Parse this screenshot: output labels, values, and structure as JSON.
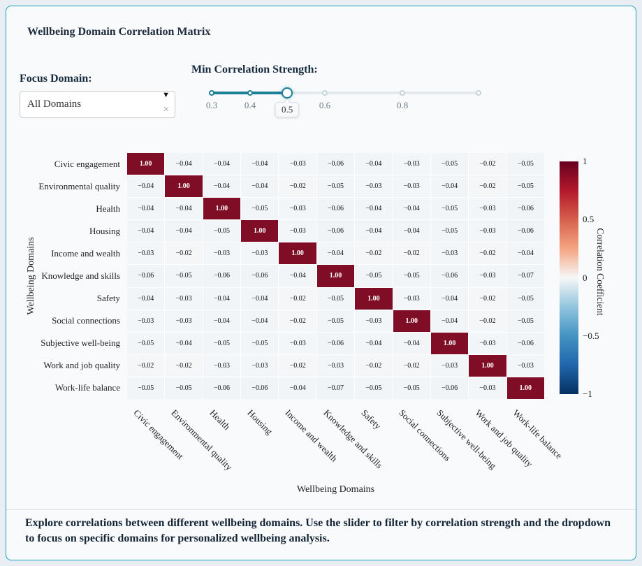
{
  "page": {
    "title": "Wellbeing Domain Correlation Matrix"
  },
  "colors": {
    "card_border_teal": "#17a2b8",
    "slider_accent_teal": "#1b7f96",
    "heatmap_diagonal_red": "#7f0d26",
    "colorbar_top_red": "#67001f",
    "colorbar_bottom_blue": "#053061"
  },
  "controls": {
    "focus_domain_label": "Focus Domain:",
    "dropdown": {
      "selected_value": "All Domains",
      "arrow_icon": "▼",
      "clear_icon": "×"
    },
    "slider_label": "Min Correlation Strength:",
    "slider": {
      "tooltip_value": "0.5",
      "handle_percent": 28.3,
      "marks": [
        {
          "label": "0.3",
          "percent": 0
        },
        {
          "label": "0.4",
          "percent": 14.4
        },
        {
          "label": "0.6",
          "percent": 42.4
        },
        {
          "label": "0.8",
          "percent": 71.5
        }
      ],
      "extra_dots_percent": [
        100
      ]
    }
  },
  "chart_data": {
    "type": "heatmap",
    "title": "",
    "xlabel": "Wellbeing Domains",
    "ylabel": "Wellbeing Domains",
    "categories": [
      "Civic engagement",
      "Environmental quality",
      "Health",
      "Housing",
      "Income and wealth",
      "Knowledge and skills",
      "Safety",
      "Social connections",
      "Subjective well-being",
      "Work and job quality",
      "Work-life balance"
    ],
    "z": [
      [
        1.0,
        -0.04,
        -0.04,
        -0.04,
        -0.03,
        -0.06,
        -0.04,
        -0.03,
        -0.05,
        -0.02,
        -0.05
      ],
      [
        -0.04,
        1.0,
        -0.04,
        -0.04,
        -0.02,
        -0.05,
        -0.03,
        -0.03,
        -0.04,
        -0.02,
        -0.05
      ],
      [
        -0.04,
        -0.04,
        1.0,
        -0.05,
        -0.03,
        -0.06,
        -0.04,
        -0.04,
        -0.05,
        -0.03,
        -0.06
      ],
      [
        -0.04,
        -0.04,
        -0.05,
        1.0,
        -0.03,
        -0.06,
        -0.04,
        -0.04,
        -0.05,
        -0.03,
        -0.06
      ],
      [
        -0.03,
        -0.02,
        -0.03,
        -0.03,
        1.0,
        -0.04,
        -0.02,
        -0.02,
        -0.03,
        -0.02,
        -0.04
      ],
      [
        -0.06,
        -0.05,
        -0.06,
        -0.06,
        -0.04,
        1.0,
        -0.05,
        -0.05,
        -0.06,
        -0.03,
        -0.07
      ],
      [
        -0.04,
        -0.03,
        -0.04,
        -0.04,
        -0.02,
        -0.05,
        1.0,
        -0.03,
        -0.04,
        -0.02,
        -0.05
      ],
      [
        -0.03,
        -0.03,
        -0.04,
        -0.04,
        -0.02,
        -0.05,
        -0.03,
        1.0,
        -0.04,
        -0.02,
        -0.05
      ],
      [
        -0.05,
        -0.04,
        -0.05,
        -0.05,
        -0.03,
        -0.06,
        -0.04,
        -0.04,
        1.0,
        -0.03,
        -0.06
      ],
      [
        -0.02,
        -0.02,
        -0.03,
        -0.03,
        -0.02,
        -0.03,
        -0.02,
        -0.02,
        -0.03,
        1.0,
        -0.03
      ],
      [
        -0.05,
        -0.05,
        -0.06,
        -0.06,
        -0.04,
        -0.07,
        -0.05,
        -0.05,
        -0.06,
        -0.03,
        1.0
      ]
    ],
    "zmin": -1,
    "zmax": 1,
    "colorscale": "RdBu reversed (red = +1, white = 0, blue = -1)",
    "colorbar": {
      "title": "Correlation Coefficient",
      "ticks": [
        "1",
        "0.5",
        "0",
        "−0.5",
        "−1"
      ]
    }
  },
  "footer": {
    "text": "Explore correlations between different wellbeing domains. Use the slider to filter by correlation strength and the dropdown to focus on specific domains for personalized wellbeing analysis."
  }
}
